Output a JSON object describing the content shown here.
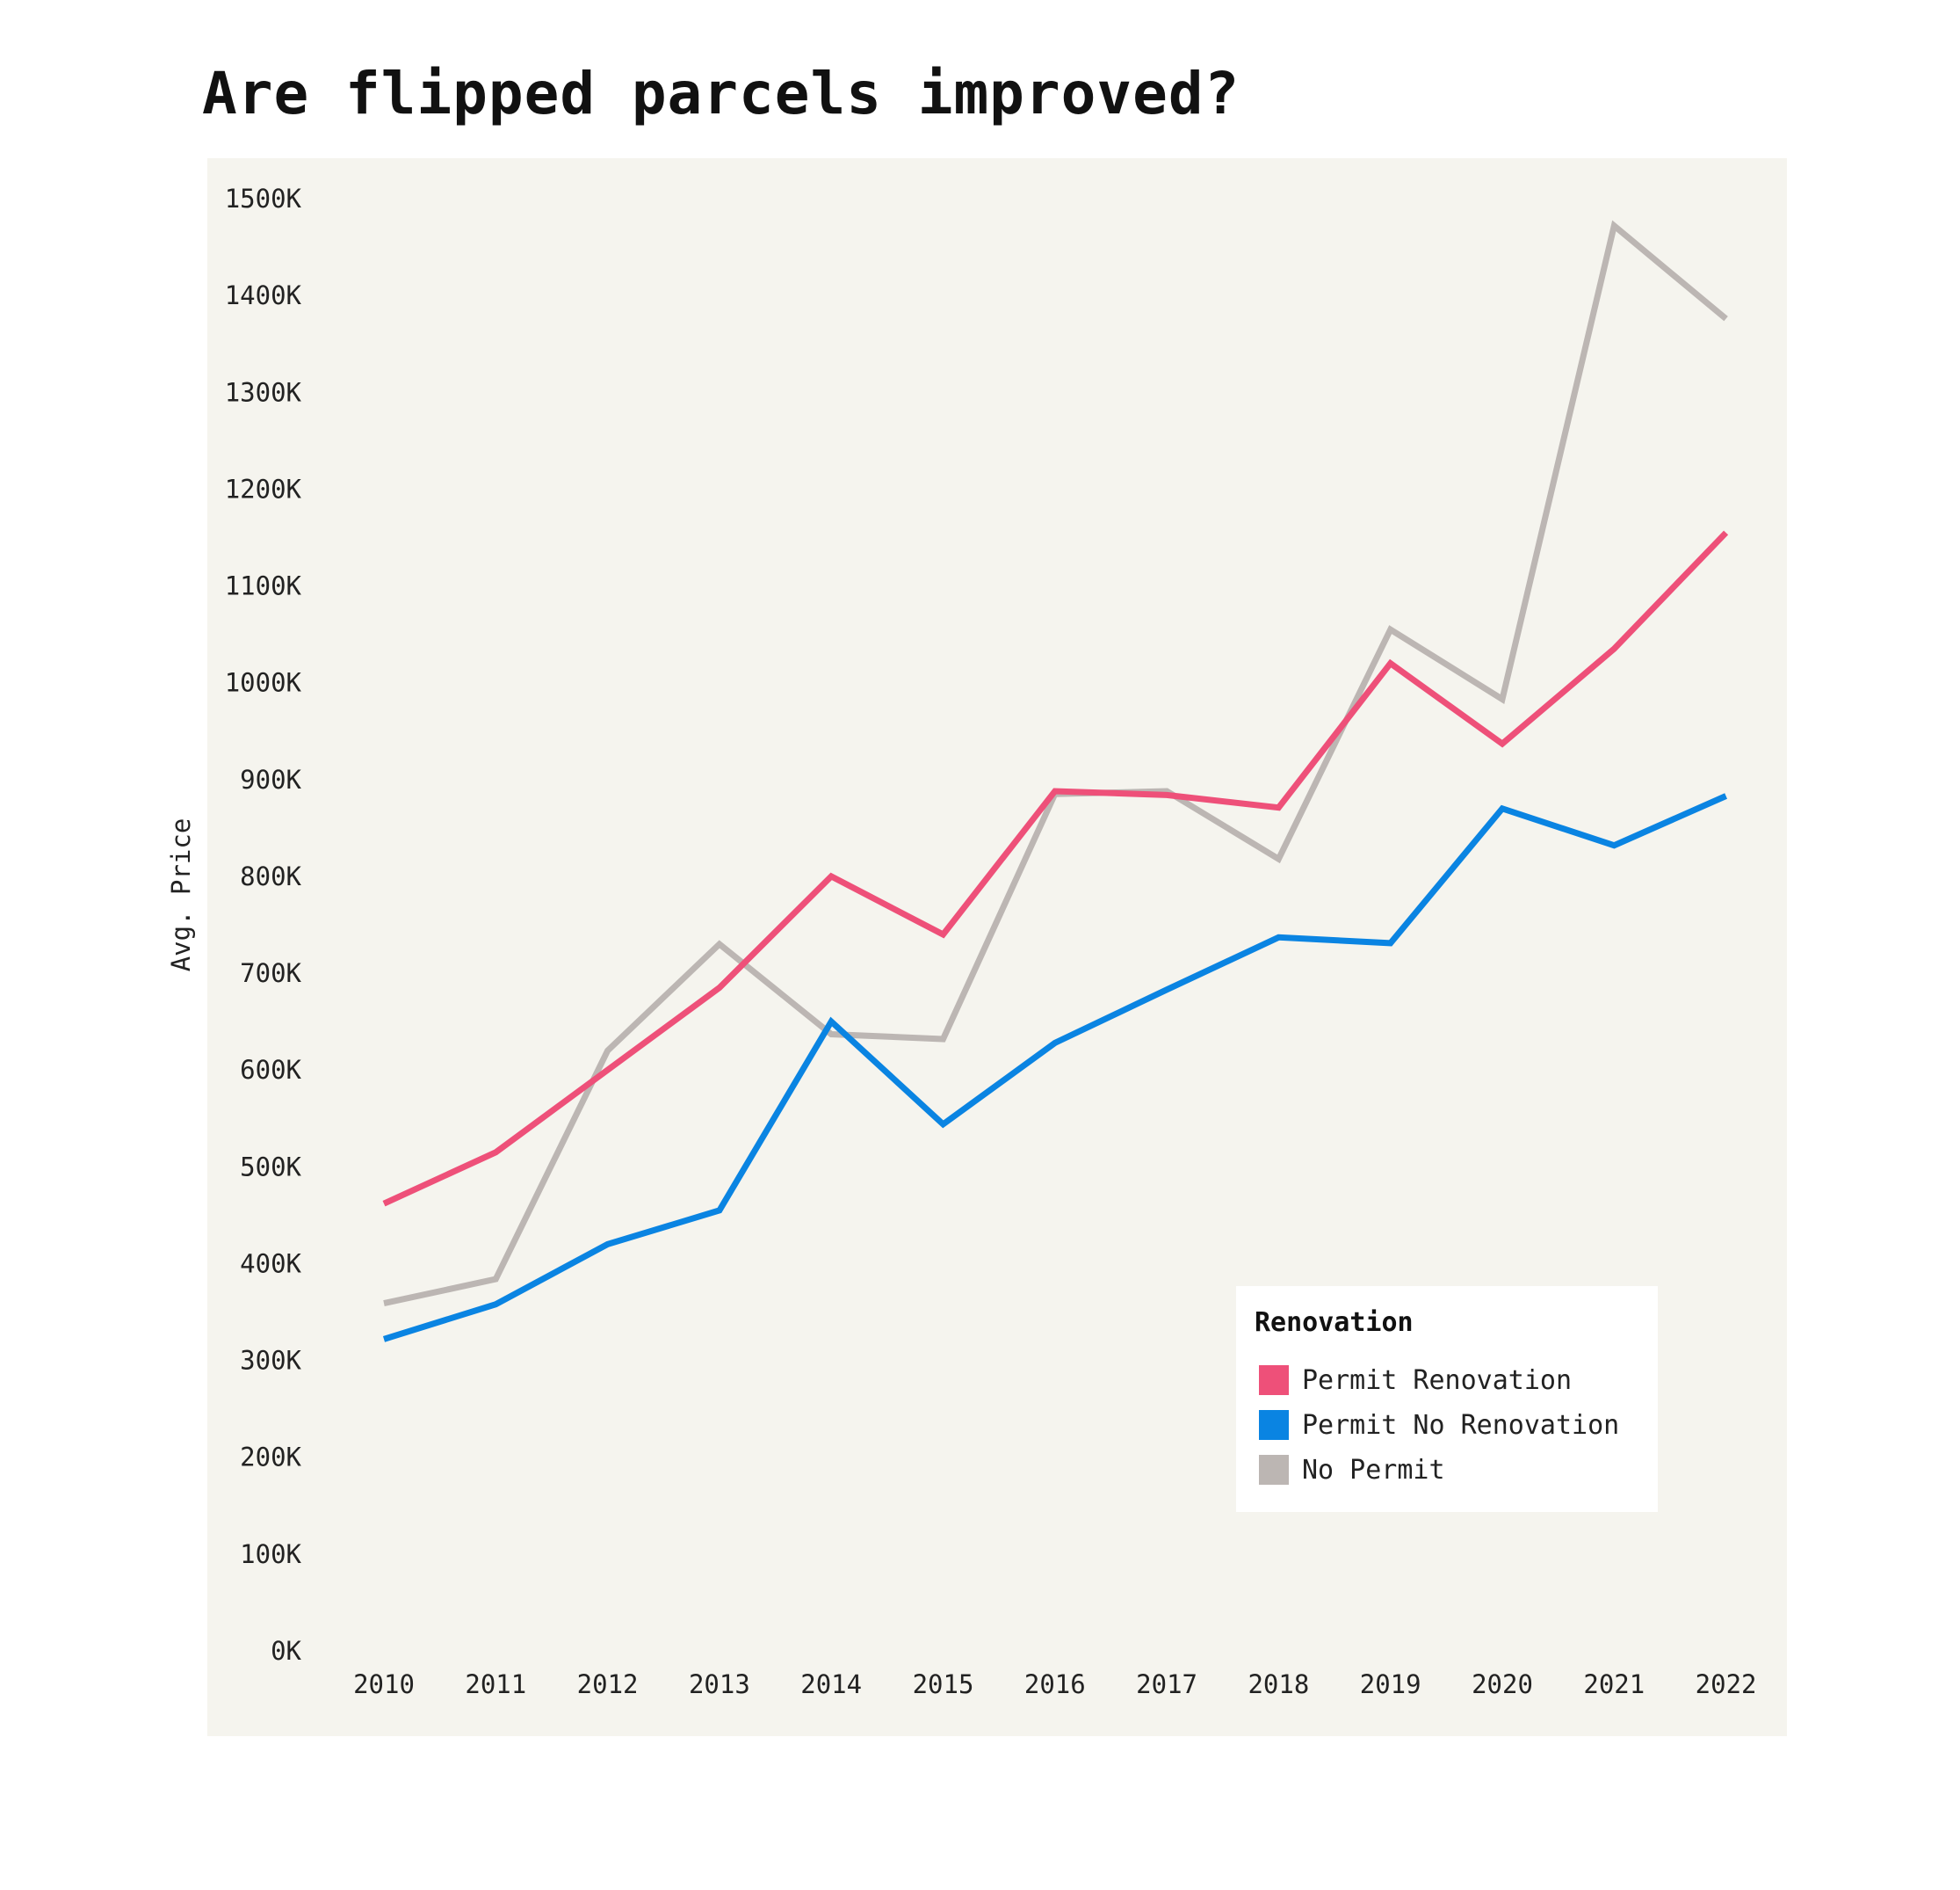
{
  "chart_data": {
    "type": "line",
    "title": "Are flipped parcels improved?",
    "xlabel": "",
    "ylabel": "Avg. Price",
    "x": [
      "2010",
      "2011",
      "2012",
      "2013",
      "2014",
      "2015",
      "2016",
      "2017",
      "2018",
      "2019",
      "2020",
      "2021",
      "2022"
    ],
    "y_ticks": [
      "0K",
      "100K",
      "200K",
      "300K",
      "400K",
      "500K",
      "600K",
      "700K",
      "800K",
      "900K",
      "1000K",
      "1100K",
      "1200K",
      "1300K",
      "1400K",
      "1500K"
    ],
    "ylim": [
      0,
      1500000
    ],
    "grid": false,
    "background_color": "#f5f4ee",
    "highlighted_tick_color": "#777777",
    "highlighted_x_tick": "2018",
    "legend": {
      "title": "Renovation",
      "placement": "bottom-right"
    },
    "series": [
      {
        "name": "Permit Renovation",
        "color": "#ee5079",
        "values": [
          462000,
          515000,
          600000,
          685000,
          800000,
          740000,
          888000,
          884000,
          871000,
          1020000,
          937000,
          1035000,
          1155000
        ]
      },
      {
        "name": "Permit No Renovation",
        "color": "#0a84e2",
        "values": [
          322000,
          358000,
          420000,
          455000,
          650000,
          544000,
          628000,
          683000,
          737000,
          731000,
          870000,
          832000,
          883000
        ]
      },
      {
        "name": "No Permit",
        "color": "#bcb6b3",
        "values": [
          359000,
          384000,
          620000,
          730000,
          637000,
          632000,
          885000,
          888000,
          818000,
          1055000,
          983000,
          1472000,
          1376000
        ]
      }
    ]
  }
}
